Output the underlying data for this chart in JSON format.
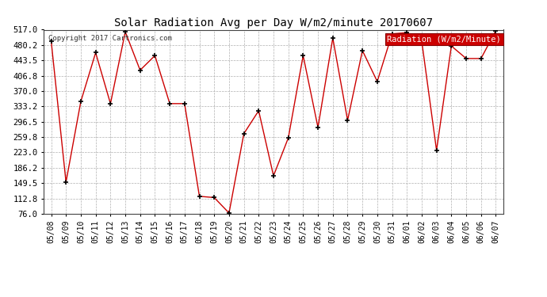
{
  "title": "Solar Radiation Avg per Day W/m2/minute 20170607",
  "copyright": "Copyright 2017 Cartronics.com",
  "legend_label": "Radiation (W/m2/Minute)",
  "dates": [
    "05/08",
    "05/09",
    "05/10",
    "05/11",
    "05/12",
    "05/13",
    "05/14",
    "05/15",
    "05/16",
    "05/17",
    "05/18",
    "05/19",
    "05/20",
    "05/21",
    "05/22",
    "05/23",
    "05/24",
    "05/25",
    "05/26",
    "05/27",
    "05/28",
    "05/29",
    "05/30",
    "05/31",
    "06/01",
    "06/02",
    "06/03",
    "06/04",
    "06/05",
    "06/06",
    "06/07"
  ],
  "values": [
    490.0,
    152.0,
    345.0,
    462.0,
    340.0,
    512.0,
    420.0,
    455.0,
    340.0,
    340.0,
    118.0,
    115.0,
    78.0,
    268.0,
    323.0,
    167.0,
    258.0,
    455.0,
    283.0,
    497.0,
    300.0,
    467.0,
    393.0,
    507.0,
    510.0,
    490.0,
    228.0,
    478.0,
    448.0,
    448.0,
    515.0
  ],
  "ylim": [
    76.0,
    517.0
  ],
  "yticks": [
    76.0,
    112.8,
    149.5,
    186.2,
    223.0,
    259.8,
    296.5,
    333.2,
    370.0,
    406.8,
    443.5,
    480.2,
    517.0
  ],
  "line_color": "#cc0000",
  "marker_color": "#000000",
  "bg_color": "#ffffff",
  "grid_color": "#b0b0b0",
  "legend_bg": "#cc0000",
  "legend_text_color": "#ffffff"
}
